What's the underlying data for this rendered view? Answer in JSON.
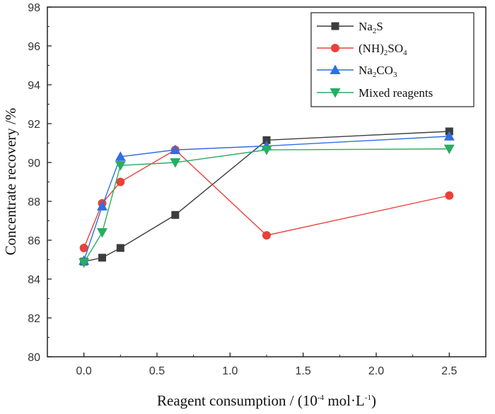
{
  "chart_data": {
    "type": "line",
    "title": "",
    "xlabel": "Reagent consumption / (10-4 mol·L-1)",
    "ylabel": "Concentrate recovery /%",
    "xlim": [
      -0.25,
      2.75
    ],
    "ylim": [
      80,
      98
    ],
    "xticks": [
      0.0,
      0.5,
      1.0,
      1.5,
      2.0,
      2.5
    ],
    "xtick_labels": [
      "0.0",
      "0.5",
      "1.0",
      "1.5",
      "2.0",
      "2.5"
    ],
    "yticks": [
      80,
      82,
      84,
      86,
      88,
      90,
      92,
      94,
      96,
      98
    ],
    "ytick_labels": [
      "80",
      "82",
      "84",
      "86",
      "88",
      "90",
      "92",
      "94",
      "96",
      "98"
    ],
    "legend_position": "top-right",
    "series": [
      {
        "name": "Na2S",
        "marker": "square",
        "color": "#3d3d3d",
        "x": [
          0,
          0.125,
          0.25,
          0.625,
          1.25,
          2.5
        ],
        "values": [
          84.9,
          85.1,
          85.6,
          87.3,
          91.15,
          91.6
        ]
      },
      {
        "name": "(NH)2SO4",
        "marker": "circle",
        "color": "#e8423a",
        "x": [
          0,
          0.125,
          0.25,
          0.625,
          1.25,
          2.5
        ],
        "values": [
          85.6,
          87.9,
          89.0,
          90.65,
          86.25,
          88.3
        ]
      },
      {
        "name": "Na2CO3",
        "marker": "triangle-up",
        "color": "#2f6fe0",
        "x": [
          0,
          0.125,
          0.25,
          0.625,
          1.25,
          2.5
        ],
        "values": [
          84.95,
          87.75,
          90.3,
          90.65,
          90.85,
          91.35
        ]
      },
      {
        "name": "Mixed reagents",
        "marker": "triangle-down",
        "color": "#27ae60",
        "x": [
          0,
          0.125,
          0.25,
          0.625,
          1.25,
          2.5
        ],
        "values": [
          84.85,
          86.4,
          89.85,
          90.0,
          90.65,
          90.7
        ]
      }
    ]
  },
  "labels": {
    "xlabel_pre": "Reagent consumption / (10",
    "xlabel_sup1": "-4",
    "xlabel_mid": " mol·L",
    "xlabel_sup2": "-1",
    "xlabel_post": ")",
    "ylabel": "Concentrate recovery /%"
  },
  "legend": {
    "na2s": {
      "a": "Na",
      "sub": "2",
      "b": "S"
    },
    "nh2so4": {
      "a": "(NH)",
      "sub1": "2",
      "b": "SO",
      "sub2": "4"
    },
    "na2co3": {
      "a": "Na",
      "sub1": "2",
      "b": "CO",
      "sub2": "3"
    },
    "mixed": {
      "a": "Mixed reagents"
    }
  }
}
